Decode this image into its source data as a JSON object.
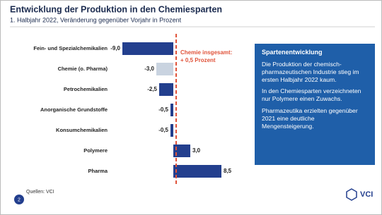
{
  "chart_data": {
    "type": "bar",
    "orientation": "horizontal",
    "title": "Entwicklung der Produktion in den Chemiesparten",
    "subtitle": "1. Halbjahr 2022, Veränderung gegenüber Vorjahr in Prozent",
    "categories": [
      "Fein- und Spezialchemikalien",
      "Chemie (o. Pharma)",
      "Petrochemikalien",
      "Anorganische Grundstoffe",
      "Konsumchemikalien",
      "Polymere",
      "Pharma"
    ],
    "values": [
      -9.0,
      -3.0,
      -2.5,
      -0.5,
      -0.5,
      3.0,
      8.5
    ],
    "value_labels": [
      "-9,0",
      "-3,0",
      "-2,5",
      "-0,5",
      "-0,5",
      "3,0",
      "8,5"
    ],
    "colors": [
      "#233f8e",
      "#c9d3e0",
      "#233f8e",
      "#233f8e",
      "#233f8e",
      "#233f8e",
      "#233f8e"
    ],
    "xlim": [
      -10,
      10
    ],
    "reference_line": {
      "value": 0.5,
      "labels": [
        "Chemie insgesamt:",
        "+ 0,5 Prozent"
      ],
      "color": "#e0533a"
    }
  },
  "panel": {
    "title": "Spartenentwicklung",
    "paragraphs": [
      "Die Produktion der chemisch-pharmazeutischen Industrie stieg im ersten Halbjahr 2022 kaum.",
      "In den Chemiesparten verzeichneten nur Polymere einen Zuwachs.",
      "Pharmazeutika erzielten gegenüber 2021 eine deutliche Mengensteigerung."
    ]
  },
  "footer": {
    "page": "2",
    "source": "Quellen: VCI",
    "logo": "VCI"
  }
}
